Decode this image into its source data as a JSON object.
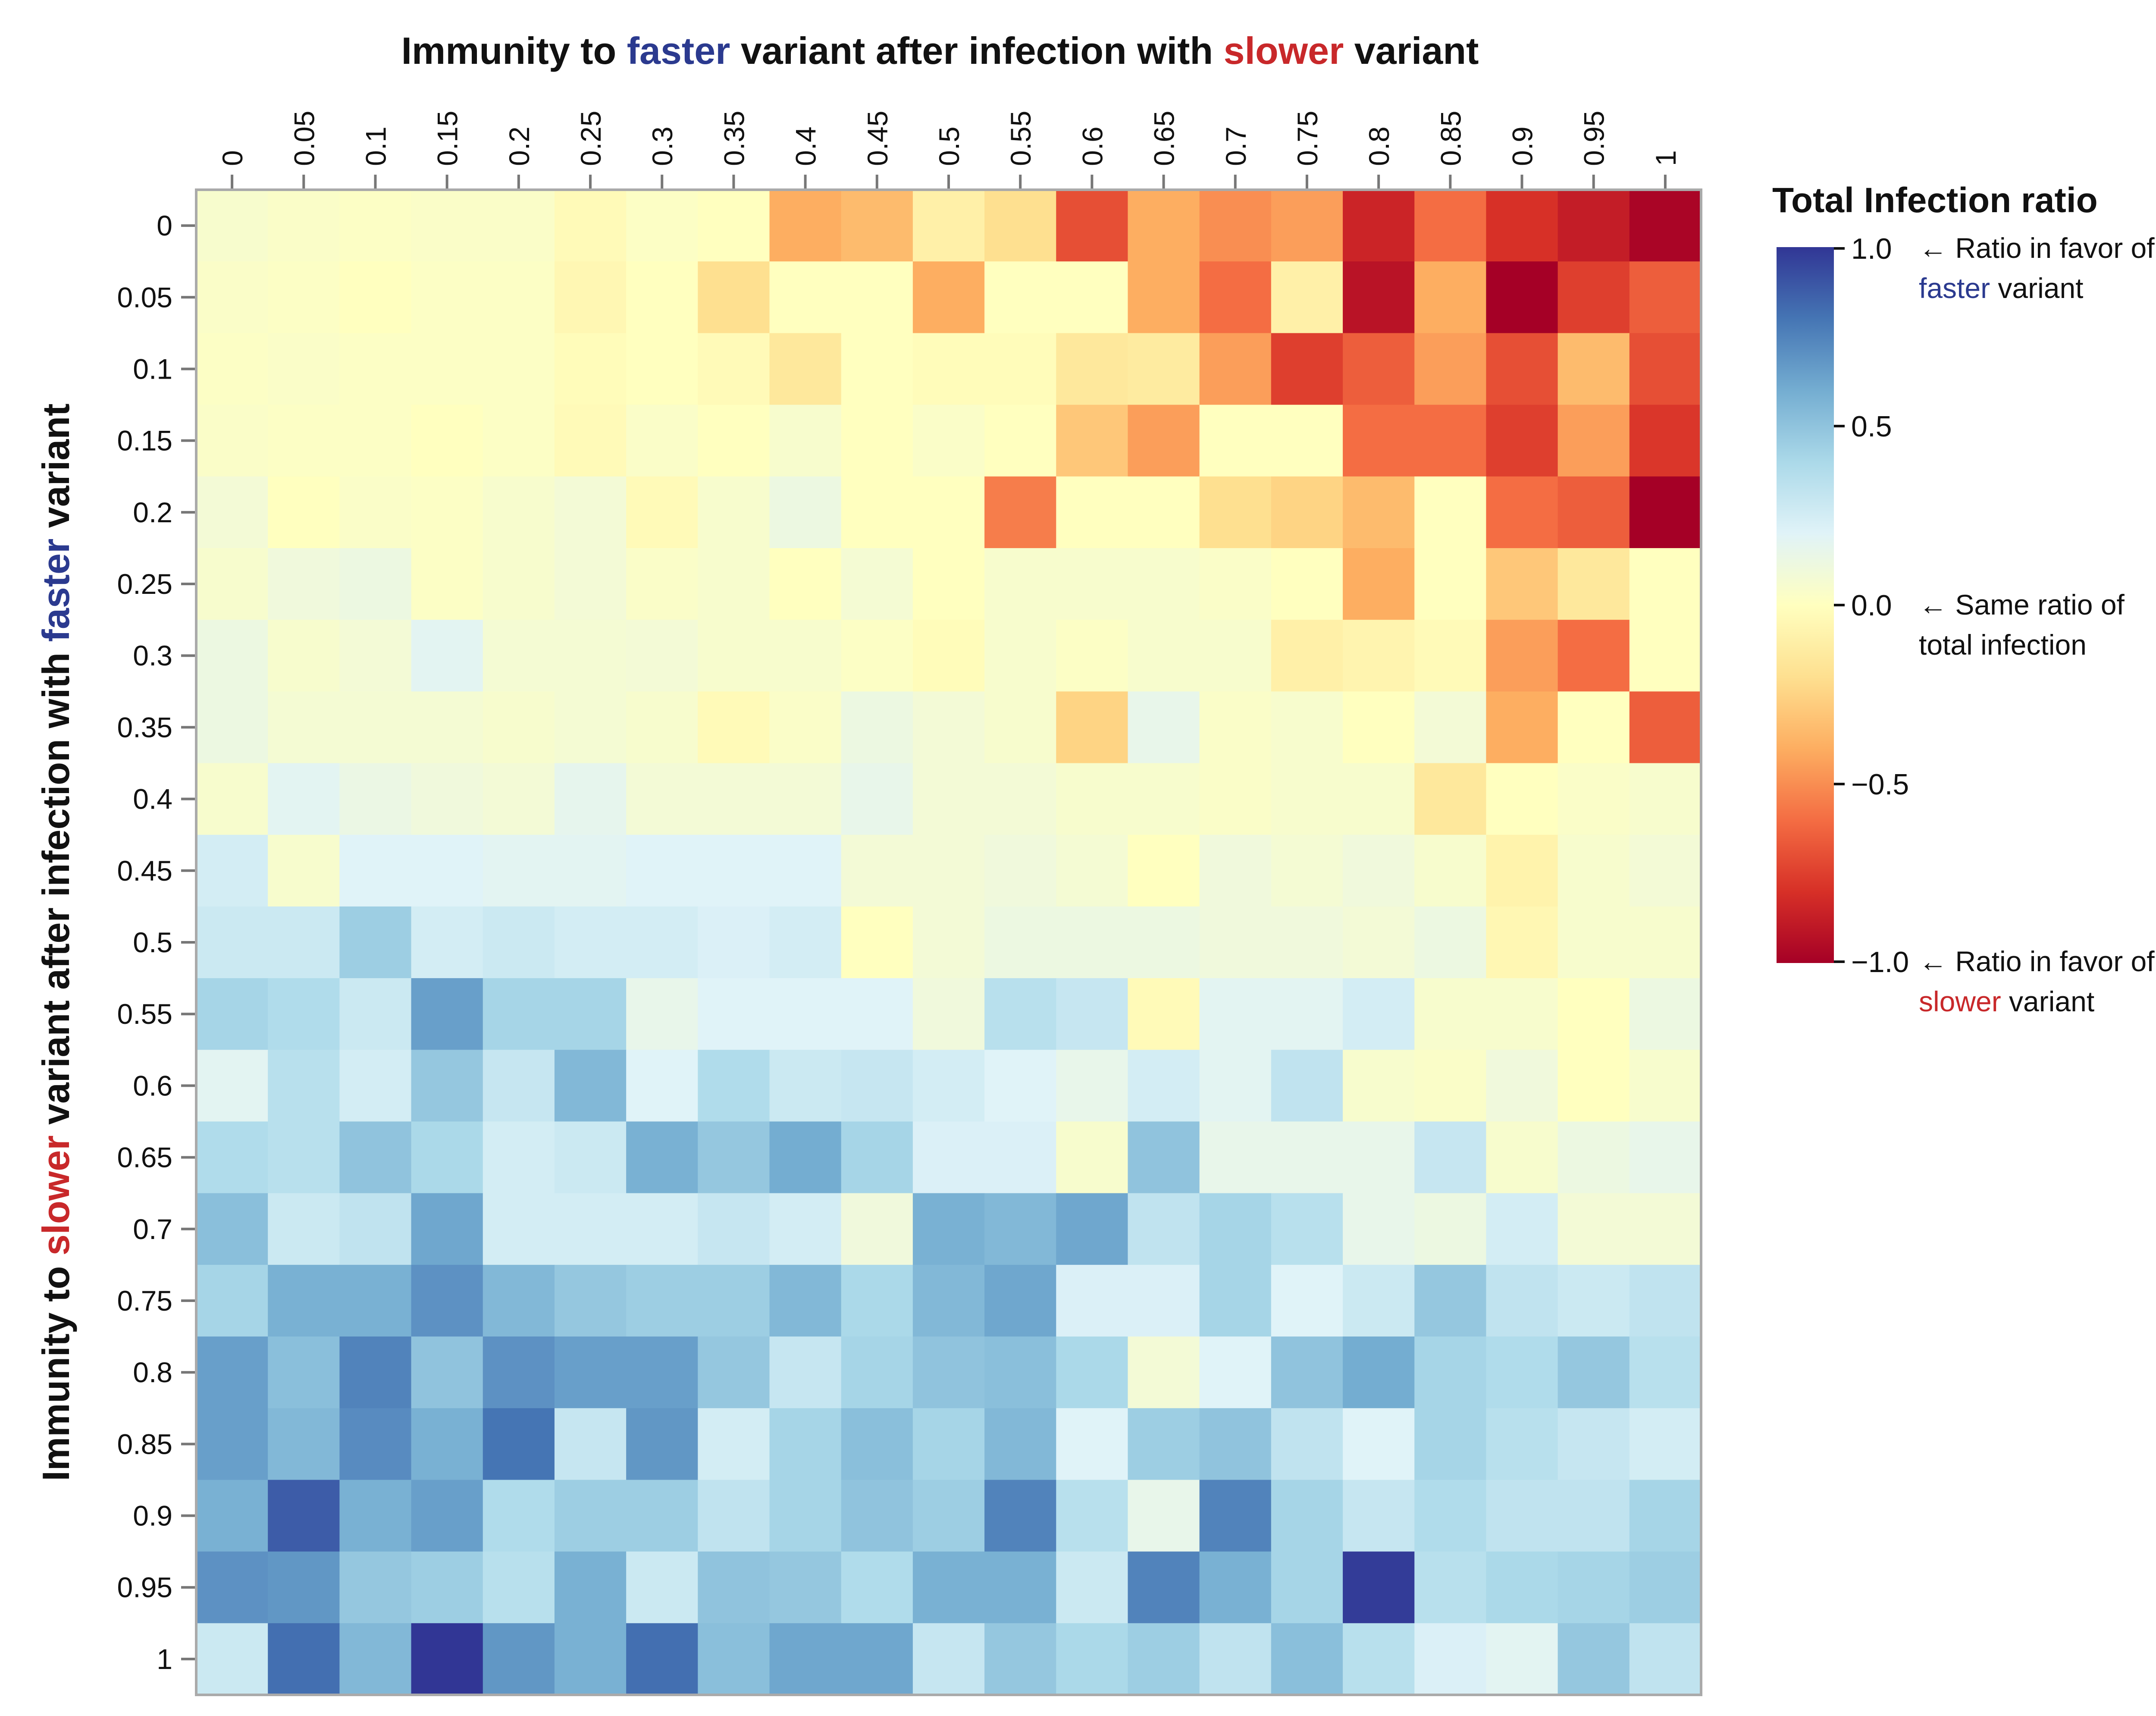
{
  "chart_data": {
    "type": "heatmap",
    "title": {
      "parts": [
        {
          "text": "Immunity to ",
          "color": "#111111"
        },
        {
          "text": "faster",
          "color": "#2b3a8f"
        },
        {
          "text": " variant after infection with ",
          "color": "#111111"
        },
        {
          "text": "slower",
          "color": "#c8282a"
        },
        {
          "text": " variant",
          "color": "#111111"
        }
      ]
    },
    "ylabel": {
      "parts": [
        {
          "text": "Immunity to ",
          "color": "#111111"
        },
        {
          "text": "slower",
          "color": "#c8282a"
        },
        {
          "text": " variant after infection with ",
          "color": "#111111"
        },
        {
          "text": "faster",
          "color": "#2b3a8f"
        },
        {
          "text": " variant",
          "color": "#111111"
        }
      ]
    },
    "x_tick_labels": [
      "0",
      "0.05",
      "0.1",
      "0.15",
      "0.2",
      "0.25",
      "0.3",
      "0.35",
      "0.4",
      "0.45",
      "0.5",
      "0.55",
      "0.6",
      "0.65",
      "0.7",
      "0.75",
      "0.8",
      "0.85",
      "0.9",
      "0.95",
      "1"
    ],
    "y_tick_labels": [
      "0",
      "0.05",
      "0.1",
      "0.15",
      "0.2",
      "0.25",
      "0.3",
      "0.35",
      "0.4",
      "0.45",
      "0.5",
      "0.55",
      "0.6",
      "0.65",
      "0.7",
      "0.75",
      "0.8",
      "0.85",
      "0.9",
      "0.95",
      "1"
    ],
    "x_axis_position": "top",
    "colormap": "RdYlBu",
    "color_range": [
      -1,
      1
    ],
    "legend": {
      "title": "Total Infection ratio",
      "ticks": [
        {
          "value": 1.0,
          "label": "1.0"
        },
        {
          "value": 0.5,
          "label": "0.5"
        },
        {
          "value": 0.0,
          "label": "0.0"
        },
        {
          "value": -0.5,
          "label": "−0.5"
        },
        {
          "value": -1.0,
          "label": "−1.0"
        }
      ],
      "annotations": [
        {
          "value": 1.0,
          "lines": [
            [
              {
                "text": "←  Ratio in favor of",
                "color": "#111111"
              }
            ],
            [
              {
                "text": "faster",
                "color": "#2b3a8f"
              },
              {
                "text": " variant",
                "color": "#111111"
              }
            ]
          ]
        },
        {
          "value": 0.0,
          "lines": [
            [
              {
                "text": "←  Same ratio of",
                "color": "#111111"
              }
            ],
            [
              {
                "text": "total infection",
                "color": "#111111"
              }
            ]
          ]
        },
        {
          "value": -1.0,
          "lines": [
            [
              {
                "text": "←  Ratio in favor of",
                "color": "#111111"
              }
            ],
            [
              {
                "text": "slower",
                "color": "#c8282a"
              },
              {
                "text": " variant",
                "color": "#111111"
              }
            ]
          ]
        }
      ]
    },
    "values": [
      [
        0.05,
        0.03,
        0.02,
        0.03,
        0.03,
        -0.03,
        0.02,
        0.0,
        -0.4,
        -0.35,
        -0.1,
        -0.2,
        -0.7,
        -0.4,
        -0.5,
        -0.45,
        -0.85,
        -0.6,
        -0.8,
        -0.88,
        -0.98
      ],
      [
        0.03,
        0.02,
        0.0,
        0.02,
        0.02,
        -0.05,
        0.0,
        -0.2,
        0.0,
        0.0,
        -0.4,
        0.0,
        0.0,
        -0.4,
        -0.6,
        -0.1,
        -0.92,
        -0.4,
        -1.0,
        -0.75,
        -0.65
      ],
      [
        0.02,
        0.03,
        0.02,
        0.02,
        0.02,
        -0.02,
        0.0,
        -0.03,
        -0.15,
        0.0,
        -0.02,
        -0.02,
        -0.15,
        -0.13,
        -0.45,
        -0.75,
        -0.65,
        -0.45,
        -0.7,
        -0.35,
        -0.7
      ],
      [
        0.03,
        0.02,
        0.02,
        0.0,
        0.02,
        -0.03,
        0.03,
        0.0,
        0.05,
        0.0,
        0.03,
        0.0,
        -0.3,
        -0.45,
        0.0,
        0.0,
        -0.6,
        -0.6,
        -0.75,
        -0.45,
        -0.78
      ],
      [
        0.08,
        0.0,
        0.03,
        0.02,
        0.05,
        0.08,
        -0.03,
        0.05,
        0.12,
        0.0,
        0.0,
        -0.55,
        0.0,
        0.0,
        -0.2,
        -0.25,
        -0.35,
        0.0,
        -0.6,
        -0.65,
        -1.0
      ],
      [
        0.05,
        0.1,
        0.12,
        0.02,
        0.05,
        0.08,
        0.03,
        0.05,
        0.0,
        0.07,
        0.0,
        0.05,
        0.05,
        0.05,
        0.03,
        0.0,
        -0.4,
        0.0,
        -0.3,
        -0.15,
        0.0
      ],
      [
        0.12,
        0.05,
        0.08,
        0.18,
        0.07,
        0.07,
        0.08,
        0.05,
        0.05,
        0.02,
        -0.02,
        0.05,
        0.02,
        0.05,
        0.05,
        -0.1,
        -0.07,
        -0.03,
        -0.45,
        -0.6,
        0.0
      ],
      [
        0.12,
        0.07,
        0.07,
        0.07,
        0.05,
        0.07,
        0.05,
        -0.03,
        0.03,
        0.12,
        0.08,
        0.05,
        -0.25,
        0.15,
        0.03,
        0.05,
        0.0,
        0.08,
        -0.4,
        0.0,
        -0.65
      ],
      [
        0.05,
        0.18,
        0.13,
        0.1,
        0.08,
        0.16,
        0.08,
        0.08,
        0.08,
        0.15,
        0.08,
        0.08,
        0.05,
        0.05,
        0.03,
        0.05,
        0.05,
        -0.15,
        0.0,
        0.03,
        0.05
      ],
      [
        0.25,
        0.05,
        0.2,
        0.2,
        0.18,
        0.18,
        0.2,
        0.2,
        0.2,
        0.08,
        0.08,
        0.1,
        0.07,
        0.0,
        0.1,
        0.07,
        0.1,
        0.05,
        -0.08,
        0.05,
        0.08
      ],
      [
        0.28,
        0.28,
        0.45,
        0.25,
        0.28,
        0.25,
        0.25,
        0.22,
        0.25,
        0.0,
        0.08,
        0.12,
        0.12,
        0.12,
        0.1,
        0.1,
        0.08,
        0.12,
        -0.05,
        0.05,
        0.05
      ],
      [
        0.42,
        0.38,
        0.28,
        0.65,
        0.42,
        0.42,
        0.15,
        0.2,
        0.2,
        0.2,
        0.1,
        0.35,
        0.3,
        -0.03,
        0.18,
        0.18,
        0.25,
        0.05,
        0.05,
        0.0,
        0.12
      ],
      [
        0.18,
        0.35,
        0.25,
        0.48,
        0.3,
        0.55,
        0.2,
        0.38,
        0.28,
        0.3,
        0.25,
        0.2,
        0.15,
        0.25,
        0.18,
        0.32,
        0.05,
        0.03,
        0.1,
        0.0,
        0.05
      ],
      [
        0.38,
        0.35,
        0.5,
        0.4,
        0.25,
        0.28,
        0.58,
        0.48,
        0.6,
        0.42,
        0.22,
        0.22,
        0.05,
        0.5,
        0.15,
        0.15,
        0.15,
        0.3,
        0.05,
        0.12,
        0.15
      ],
      [
        0.52,
        0.28,
        0.32,
        0.62,
        0.25,
        0.25,
        0.25,
        0.3,
        0.25,
        0.1,
        0.58,
        0.55,
        0.62,
        0.32,
        0.42,
        0.35,
        0.15,
        0.12,
        0.25,
        0.08,
        0.08
      ],
      [
        0.42,
        0.58,
        0.58,
        0.7,
        0.55,
        0.48,
        0.45,
        0.45,
        0.55,
        0.4,
        0.55,
        0.62,
        0.22,
        0.22,
        0.42,
        0.2,
        0.28,
        0.48,
        0.32,
        0.28,
        0.32
      ],
      [
        0.65,
        0.52,
        0.75,
        0.5,
        0.7,
        0.65,
        0.65,
        0.48,
        0.3,
        0.42,
        0.5,
        0.52,
        0.4,
        0.08,
        0.2,
        0.5,
        0.6,
        0.42,
        0.38,
        0.48,
        0.35
      ],
      [
        0.65,
        0.55,
        0.72,
        0.58,
        0.8,
        0.3,
        0.68,
        0.25,
        0.42,
        0.52,
        0.42,
        0.55,
        0.2,
        0.45,
        0.5,
        0.32,
        0.2,
        0.42,
        0.35,
        0.3,
        0.25
      ],
      [
        0.58,
        0.88,
        0.58,
        0.65,
        0.38,
        0.45,
        0.45,
        0.32,
        0.42,
        0.5,
        0.45,
        0.75,
        0.35,
        0.15,
        0.75,
        0.42,
        0.3,
        0.38,
        0.32,
        0.32,
        0.42
      ],
      [
        0.7,
        0.68,
        0.48,
        0.45,
        0.35,
        0.58,
        0.28,
        0.5,
        0.48,
        0.38,
        0.58,
        0.58,
        0.28,
        0.75,
        0.58,
        0.42,
        0.98,
        0.35,
        0.4,
        0.42,
        0.45
      ],
      [
        0.28,
        0.82,
        0.55,
        1.0,
        0.68,
        0.58,
        0.82,
        0.52,
        0.62,
        0.62,
        0.3,
        0.48,
        0.4,
        0.45,
        0.32,
        0.52,
        0.35,
        0.22,
        0.18,
        0.48,
        0.32
      ]
    ]
  }
}
